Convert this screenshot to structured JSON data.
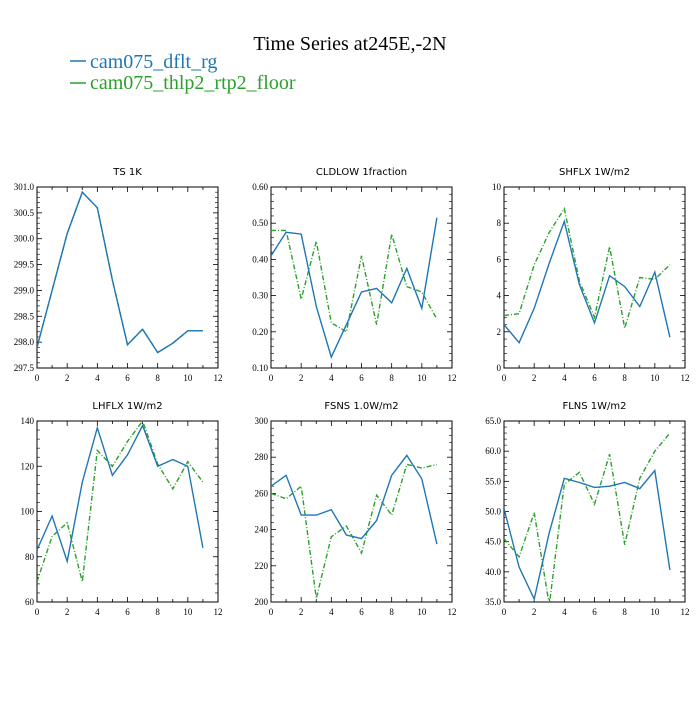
{
  "figure": {
    "title": "Time Series at245E,-2N",
    "legend": [
      {
        "label": "cam075_dflt_rg",
        "color": "#1f77b4",
        "dash": "solid"
      },
      {
        "label": "cam075_thlp2_rtp2_floor",
        "color": "#2ca02c",
        "dash": "dashed"
      }
    ],
    "legend_placement": "top-left",
    "grid": false
  },
  "chart_data": [
    {
      "type": "line",
      "title": "TS   1K",
      "xlim": [
        0,
        12
      ],
      "xticks": [
        "0",
        "2",
        "4",
        "6",
        "8",
        "10",
        "12"
      ],
      "ylim": [
        297.5,
        301.0
      ],
      "yticks": [
        "297.5",
        "298.0",
        "298.5",
        "299.0",
        "299.5",
        "300.0",
        "300.5",
        "301.0"
      ],
      "x": [
        0,
        1,
        2,
        3,
        4,
        5,
        6,
        7,
        8,
        9,
        10,
        11
      ],
      "series": [
        {
          "name": "cam075_dflt_rg",
          "values": [
            297.9,
            299.0,
            300.1,
            300.9,
            300.6,
            299.2,
            297.95,
            298.25,
            297.8,
            297.98,
            298.22,
            298.22
          ]
        },
        {
          "name": "cam075_thlp2_rtp2_floor",
          "values": [
            297.9,
            299.0,
            300.1,
            300.9,
            300.6,
            299.2,
            297.95,
            298.25,
            297.8,
            297.98,
            298.22,
            298.22
          ]
        }
      ]
    },
    {
      "type": "line",
      "title": "CLDLOW   1fraction",
      "xlim": [
        0,
        12
      ],
      "xticks": [
        "0",
        "2",
        "4",
        "6",
        "8",
        "10",
        "12"
      ],
      "ylim": [
        0.1,
        0.6
      ],
      "yticks": [
        "0.10",
        "0.20",
        "0.30",
        "0.40",
        "0.50",
        "0.60"
      ],
      "x": [
        0,
        1,
        2,
        3,
        4,
        5,
        6,
        7,
        8,
        9,
        10,
        11
      ],
      "series": [
        {
          "name": "cam075_dflt_rg",
          "values": [
            0.41,
            0.475,
            0.47,
            0.27,
            0.13,
            0.22,
            0.31,
            0.32,
            0.28,
            0.375,
            0.265,
            0.515
          ]
        },
        {
          "name": "cam075_thlp2_rtp2_floor",
          "values": [
            0.48,
            0.48,
            0.29,
            0.45,
            0.225,
            0.2,
            0.41,
            0.22,
            0.47,
            0.325,
            0.31,
            0.235
          ]
        }
      ]
    },
    {
      "type": "line",
      "title": "SHFLX   1W/m2",
      "xlim": [
        0,
        12
      ],
      "xticks": [
        "0",
        "2",
        "4",
        "6",
        "8",
        "10",
        "12"
      ],
      "ylim": [
        0,
        10
      ],
      "yticks": [
        "0",
        "2",
        "4",
        "6",
        "8",
        "10"
      ],
      "x": [
        0,
        1,
        2,
        3,
        4,
        5,
        6,
        7,
        8,
        9,
        10,
        11
      ],
      "series": [
        {
          "name": "cam075_dflt_rg",
          "values": [
            2.4,
            1.4,
            3.3,
            5.8,
            8.1,
            4.6,
            2.5,
            5.1,
            4.5,
            3.4,
            5.3,
            1.7
          ]
        },
        {
          "name": "cam075_thlp2_rtp2_floor",
          "values": [
            2.9,
            3.0,
            5.7,
            7.5,
            8.8,
            4.8,
            2.8,
            6.7,
            2.2,
            5.0,
            4.9,
            5.7
          ]
        }
      ]
    },
    {
      "type": "line",
      "title": "LHFLX   1W/m2",
      "xlim": [
        0,
        12
      ],
      "xticks": [
        "0",
        "2",
        "4",
        "6",
        "8",
        "10",
        "12"
      ],
      "ylim": [
        60,
        140
      ],
      "yticks": [
        "60",
        "80",
        "100",
        "120",
        "140"
      ],
      "x": [
        0,
        1,
        2,
        3,
        4,
        5,
        6,
        7,
        8,
        9,
        10,
        11
      ],
      "series": [
        {
          "name": "cam075_dflt_rg",
          "values": [
            83,
            98,
            78,
            113,
            137,
            116,
            125,
            138,
            120,
            123,
            120,
            84
          ]
        },
        {
          "name": "cam075_thlp2_rtp2_floor",
          "values": [
            69,
            89,
            95,
            69,
            127,
            120,
            131,
            140,
            121,
            110,
            122,
            113
          ]
        }
      ]
    },
    {
      "type": "line",
      "title": "FSNS   1.0W/m2",
      "xlim": [
        0,
        12
      ],
      "xticks": [
        "0",
        "2",
        "4",
        "6",
        "8",
        "10",
        "12"
      ],
      "ylim": [
        200,
        300
      ],
      "yticks": [
        "200",
        "220",
        "240",
        "260",
        "280",
        "300"
      ],
      "x": [
        0,
        1,
        2,
        3,
        4,
        5,
        6,
        7,
        8,
        9,
        10,
        11
      ],
      "series": [
        {
          "name": "cam075_dflt_rg",
          "values": [
            264,
            270,
            248,
            248,
            251,
            237,
            235,
            245,
            270,
            281,
            268,
            232
          ]
        },
        {
          "name": "cam075_thlp2_rtp2_floor",
          "values": [
            260,
            257,
            264,
            202,
            236,
            242,
            227,
            259,
            248,
            276,
            274,
            276
          ]
        }
      ]
    },
    {
      "type": "line",
      "title": "FLNS   1W/m2",
      "xlim": [
        0,
        12
      ],
      "xticks": [
        "0",
        "2",
        "4",
        "6",
        "8",
        "10",
        "12"
      ],
      "ylim": [
        35.0,
        65.0
      ],
      "yticks": [
        "35.0",
        "40.0",
        "45.0",
        "50.0",
        "55.0",
        "60.0",
        "65.0"
      ],
      "x": [
        0,
        1,
        2,
        3,
        4,
        5,
        6,
        7,
        8,
        9,
        10,
        11
      ],
      "series": [
        {
          "name": "cam075_dflt_rg",
          "values": [
            50.5,
            40.8,
            35.5,
            46.5,
            55.5,
            54.8,
            54.0,
            54.2,
            54.8,
            53.8,
            56.8,
            40.3
          ]
        },
        {
          "name": "cam075_thlp2_rtp2_floor",
          "values": [
            45.5,
            42.5,
            49.8,
            34.5,
            54.5,
            56.5,
            51.2,
            59.5,
            44.5,
            55.5,
            60.0,
            63.0
          ]
        }
      ]
    }
  ]
}
